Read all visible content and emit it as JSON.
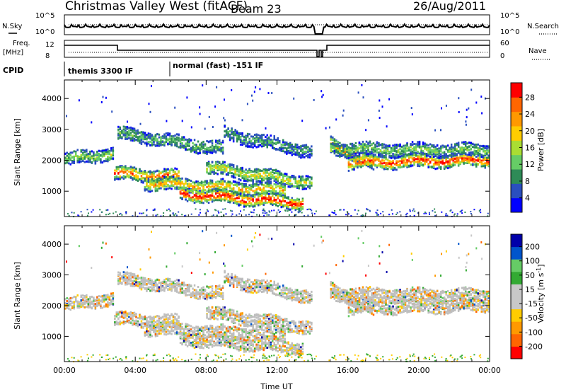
{
  "header": {
    "station": "Christmas Valley West (fitACF)",
    "beam": "Beam 23",
    "date": "26/Aug/2011"
  },
  "top_panels": {
    "nsky_label": "N.Sky",
    "nsky_ticks": [
      "10^5",
      "10^0"
    ],
    "nsearch_label": "N.Search",
    "nsearch_ticks": [
      "10^5",
      "10^0"
    ],
    "freq_label": "Freq.",
    "freq_unit": "[MHz]",
    "freq_ticks": [
      "12",
      "8"
    ],
    "nave_label": "Nave",
    "nave_ticks": [
      "60",
      "0"
    ],
    "cpid_label": "CPID",
    "cpid_modes": [
      "themis 3300 IF",
      "normal (fast) -151 IF"
    ]
  },
  "colors": {
    "power_scale": [
      "#0000ff",
      "#2a4fbf",
      "#2e8b57",
      "#66cc66",
      "#aadd33",
      "#ffcc00",
      "#ff9900",
      "#ff6600",
      "#ff0000"
    ],
    "velocity_scale": [
      "#ff0000",
      "#ff6600",
      "#ff9900",
      "#ffcc00",
      "#c8c8c8",
      "#c8c8c8",
      "#33aa33",
      "#66cc66",
      "#0055cc",
      "#0000aa"
    ],
    "ground_scatter": "#bebebe"
  },
  "chart_data": [
    {
      "type": "heatmap",
      "name": "power",
      "ylabel": "Slant Range [km]",
      "xlabel": "Time UT",
      "y_ticks": [
        "4000",
        "3000",
        "2000",
        "1000"
      ],
      "ylim": [
        180,
        4600
      ],
      "xlim": [
        "00:00",
        "24:00"
      ],
      "colorbar": {
        "label": "Power [dB]",
        "ticks": [
          "28",
          "24",
          "20",
          "16",
          "12",
          "8",
          "4"
        ],
        "range": [
          0,
          32
        ]
      }
    },
    {
      "type": "heatmap",
      "name": "velocity",
      "ylabel": "Slant Range [km]",
      "xlabel": "Time UT",
      "y_ticks": [
        "4000",
        "3000",
        "2000",
        "1000"
      ],
      "ylim": [
        180,
        4600
      ],
      "xlim": [
        "00:00",
        "24:00"
      ],
      "x_ticks": [
        "00:00",
        "04:00",
        "08:00",
        "12:00",
        "16:00",
        "20:00",
        "00:00"
      ],
      "colorbar": {
        "label": "Velocity [m s",
        "label_sup": "-1",
        "label_end": "]",
        "ticks": [
          "200",
          "100",
          "50",
          "15",
          "-15",
          "-50",
          "-100",
          "-200"
        ],
        "range": [
          -250,
          250
        ]
      }
    }
  ]
}
